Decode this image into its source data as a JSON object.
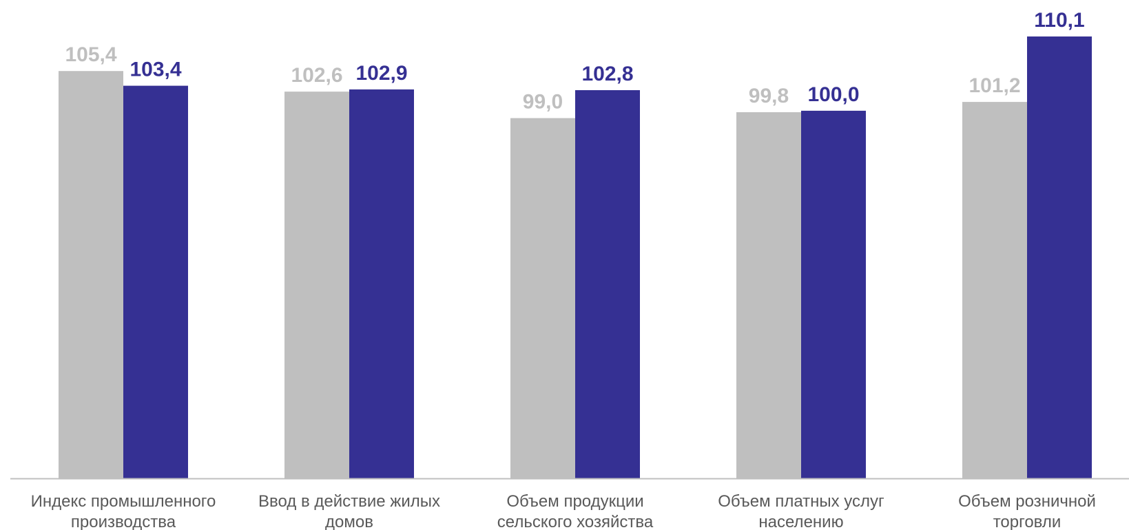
{
  "chart_data": {
    "type": "bar",
    "title": "",
    "xlabel": "",
    "ylabel": "",
    "categories": [
      [
        "Индекс промышленного",
        "производства"
      ],
      [
        "Ввод в действие жилых",
        "домов"
      ],
      [
        "Объем продукции",
        "сельского хозяйства"
      ],
      [
        "Объем платных услуг",
        "населению"
      ],
      [
        "Объем розничной",
        "торговли"
      ]
    ],
    "series": [
      {
        "color": "#bfbfbf",
        "values": [
          105.4,
          102.6,
          99.0,
          99.8,
          101.2
        ],
        "labels": [
          "105,4",
          "102,6",
          "99,0",
          "99,8",
          "101,2"
        ]
      },
      {
        "color": "#353093",
        "values": [
          103.4,
          102.9,
          102.8,
          100.0,
          110.1
        ],
        "labels": [
          "103,4",
          "102,9",
          "102,8",
          "100,0",
          "110,1"
        ]
      }
    ],
    "ylim": [
      50,
      110.1
    ],
    "grid": false,
    "legend": "none",
    "axis_color": "#bfbfbf",
    "category_label_color": "#595959"
  }
}
